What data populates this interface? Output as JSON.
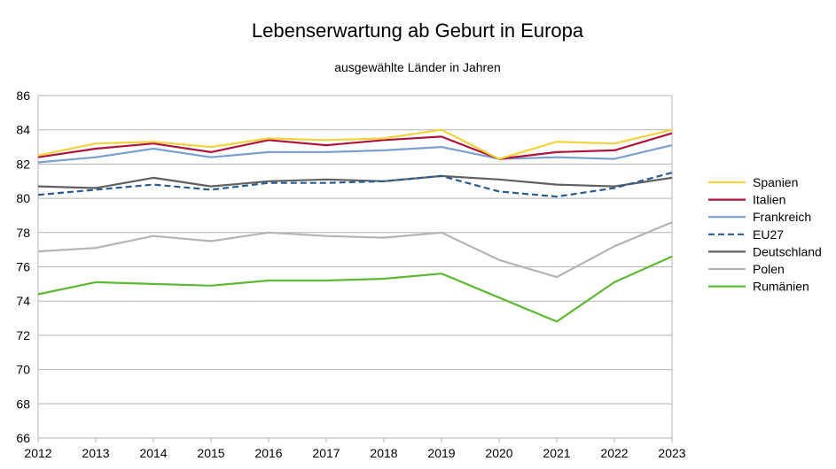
{
  "chart_data": {
    "type": "line",
    "title": "Lebenserwartung ab Geburt in Europa",
    "subtitle": "ausgewählte Länder in Jahren",
    "xlabel": "",
    "ylabel": "",
    "x": [
      "2012",
      "2013",
      "2014",
      "2015",
      "2016",
      "2017",
      "2018",
      "2019",
      "2020",
      "2021",
      "2022",
      "2023"
    ],
    "ylim": [
      66,
      86
    ],
    "yticks": [
      "66",
      "68",
      "70",
      "72",
      "74",
      "76",
      "78",
      "80",
      "82",
      "84",
      "86"
    ],
    "grid": true,
    "legend_position": "right",
    "series": [
      {
        "name": "Spanien",
        "color": "#f2d33b",
        "dashed": false,
        "values": [
          82.5,
          83.2,
          83.3,
          83.0,
          83.5,
          83.4,
          83.5,
          84.0,
          82.3,
          83.3,
          83.2,
          84.0
        ]
      },
      {
        "name": "Italien",
        "color": "#b0143c",
        "dashed": false,
        "values": [
          82.4,
          82.9,
          83.2,
          82.7,
          83.4,
          83.1,
          83.4,
          83.6,
          82.3,
          82.7,
          82.8,
          83.8
        ]
      },
      {
        "name": "Frankreich",
        "color": "#7b9fd1",
        "dashed": false,
        "values": [
          82.1,
          82.4,
          82.9,
          82.4,
          82.7,
          82.7,
          82.8,
          83.0,
          82.3,
          82.4,
          82.3,
          83.1
        ]
      },
      {
        "name": "EU27",
        "color": "#2a5d8f",
        "dashed": true,
        "values": [
          80.2,
          80.5,
          80.8,
          80.5,
          80.9,
          80.9,
          81.0,
          81.3,
          80.4,
          80.1,
          80.6,
          81.5
        ]
      },
      {
        "name": "Deutschland",
        "color": "#606060",
        "dashed": false,
        "values": [
          80.7,
          80.6,
          81.2,
          80.7,
          81.0,
          81.1,
          81.0,
          81.3,
          81.1,
          80.8,
          80.7,
          81.2
        ]
      },
      {
        "name": "Polen",
        "color": "#b4b4b4",
        "dashed": false,
        "values": [
          76.9,
          77.1,
          77.8,
          77.5,
          78.0,
          77.8,
          77.7,
          78.0,
          76.4,
          75.4,
          77.2,
          78.6
        ]
      },
      {
        "name": "Rumänien",
        "color": "#5db832",
        "dashed": false,
        "values": [
          74.4,
          75.1,
          75.0,
          74.9,
          75.2,
          75.2,
          75.3,
          75.6,
          74.2,
          72.8,
          75.1,
          76.6
        ]
      }
    ]
  }
}
